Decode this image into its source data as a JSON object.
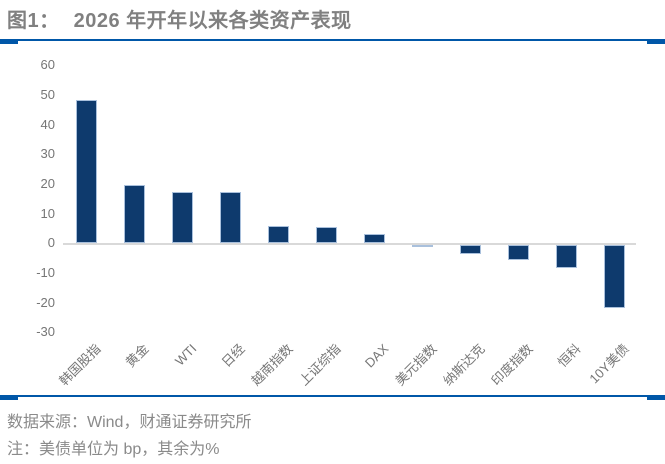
{
  "header": {
    "figure_label": "图1：",
    "title": "2026 年开年以来各类资产表现"
  },
  "footer": {
    "source": "数据来源：Wind，财通证券研究所",
    "note": "注：美债单位为 bp，其余为%"
  },
  "colors": {
    "accent_blue": "#0057a8",
    "bar_fill": "#0e3a6d",
    "bar_border": "#a9c0dc",
    "axis_text": "#767676",
    "title_text": "#808080",
    "footer_text": "#8a8a8a",
    "zero_line": "#d9d9d9"
  },
  "chart_data": {
    "type": "bar",
    "title": "2026 年开年以来各类资产表现",
    "categories": [
      "韩国股指",
      "黄金",
      "WTI",
      "日经",
      "越南指数",
      "上证综指",
      "DAX",
      "美元指数",
      "纳斯达克",
      "印度指数",
      "恒科",
      "10Y美债"
    ],
    "values": [
      48.4,
      19.8,
      17.4,
      17.4,
      5.8,
      5.5,
      3.3,
      -0.7,
      -3.1,
      -5.0,
      -7.6,
      -21.3
    ],
    "xlabel": "",
    "ylabel": "",
    "ylim": [
      -30,
      60
    ],
    "yticks": [
      60,
      50,
      40,
      30,
      20,
      10,
      0,
      -10,
      -20,
      -30
    ],
    "grid": false,
    "legend_position": "none",
    "x_tick_rotation": 45,
    "unit_note": "美债单位为 bp，其余为%"
  }
}
